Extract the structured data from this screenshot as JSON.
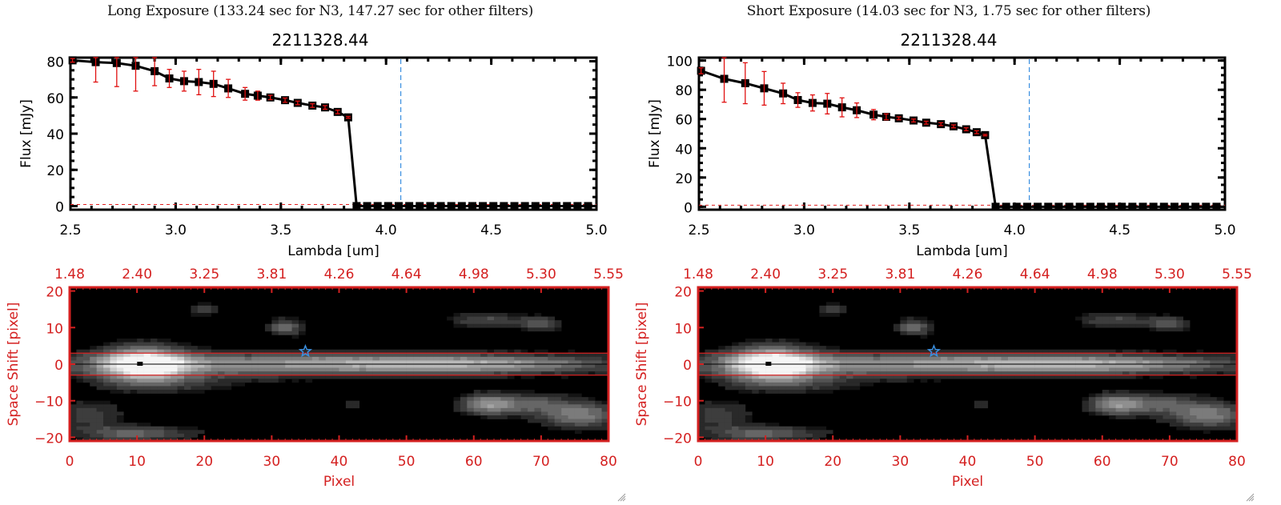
{
  "chart_data": [
    {
      "type": "line",
      "panel": "long",
      "title": "Long Exposure (133.24 sec for N3, 147.27 sec for other filters)",
      "subtitle": "2211328.44",
      "xlabel": "Lambda [um]",
      "ylabel": "Flux [mJy]",
      "xlim": [
        2.5,
        5.0
      ],
      "ylim": [
        -2,
        82
      ],
      "xticks": [
        "2.5",
        "3.0",
        "3.5",
        "4.0",
        "4.5",
        "5.0"
      ],
      "yticks": [
        "0",
        "20",
        "40",
        "60",
        "80"
      ],
      "ytick_values": [
        0,
        20,
        40,
        60,
        80
      ],
      "xtick_values": [
        2.5,
        3.0,
        3.5,
        4.0,
        4.5,
        5.0
      ],
      "marker_line": {
        "x": 4.07,
        "color": "#3a8fe0",
        "style": "dashed"
      },
      "zero_line": {
        "y": 0,
        "color": "#e02020",
        "style": "dashed"
      },
      "series": [
        {
          "name": "flux",
          "color": "#000000",
          "error_color": "#e01010",
          "x": [
            2.51,
            2.62,
            2.72,
            2.81,
            2.9,
            2.97,
            3.04,
            3.11,
            3.18,
            3.25,
            3.33,
            3.39,
            3.45,
            3.52,
            3.58,
            3.65,
            3.71,
            3.77,
            3.82,
            3.86,
            3.91,
            3.96,
            4.01,
            4.06,
            4.11,
            4.16,
            4.21,
            4.26,
            4.31,
            4.36,
            4.41,
            4.46,
            4.51,
            4.56,
            4.61,
            4.66,
            4.71,
            4.76,
            4.81,
            4.86,
            4.91,
            4.96
          ],
          "y": [
            80.5,
            79.5,
            79,
            77.5,
            74.5,
            70.5,
            69,
            68.5,
            67.5,
            65,
            62,
            61,
            60,
            58.5,
            57,
            55.5,
            54.5,
            52,
            49,
            0,
            0,
            0,
            0,
            0,
            0,
            0,
            0,
            0,
            0,
            0,
            0,
            0,
            0,
            0,
            0,
            0,
            0,
            0,
            0,
            0,
            0,
            0
          ],
          "err": [
            1,
            11,
            13,
            14,
            8,
            5,
            5.5,
            7,
            7,
            5,
            3.5,
            2.5,
            1.2,
            1.2,
            1,
            1,
            1,
            1,
            0.5,
            0,
            0,
            0,
            0,
            0,
            0,
            0,
            0,
            0,
            0,
            0,
            0,
            0,
            0,
            0,
            0,
            0,
            0,
            0,
            0,
            0,
            0,
            0
          ]
        }
      ]
    },
    {
      "type": "line",
      "panel": "short",
      "title": "Short Exposure (14.03 sec for N3, 1.75 sec for other filters)",
      "subtitle": "2211328.44",
      "xlabel": "Lambda [um]",
      "ylabel": "Flux [mJy]",
      "xlim": [
        2.5,
        5.0
      ],
      "ylim": [
        -2,
        102
      ],
      "xticks": [
        "2.5",
        "3.0",
        "3.5",
        "4.0",
        "4.5",
        "5.0"
      ],
      "yticks": [
        "0",
        "20",
        "40",
        "60",
        "80",
        "100"
      ],
      "ytick_values": [
        0,
        20,
        40,
        60,
        80,
        100
      ],
      "xtick_values": [
        2.5,
        3.0,
        3.5,
        4.0,
        4.5,
        5.0
      ],
      "marker_line": {
        "x": 4.07,
        "color": "#3a8fe0",
        "style": "dashed"
      },
      "zero_line": {
        "y": 0,
        "color": "#e02020",
        "style": "dashed"
      },
      "series": [
        {
          "name": "flux",
          "color": "#000000",
          "error_color": "#e01010",
          "x": [
            2.51,
            2.62,
            2.72,
            2.81,
            2.9,
            2.97,
            3.04,
            3.11,
            3.18,
            3.25,
            3.33,
            3.39,
            3.45,
            3.52,
            3.58,
            3.65,
            3.71,
            3.77,
            3.82,
            3.86,
            3.91,
            3.96,
            4.01,
            4.06,
            4.11,
            4.16,
            4.21,
            4.26,
            4.31,
            4.36,
            4.41,
            4.46,
            4.51,
            4.56,
            4.61,
            4.66,
            4.71,
            4.76,
            4.81,
            4.86,
            4.91,
            4.96
          ],
          "y": [
            93,
            87.5,
            84.5,
            81,
            77.5,
            73,
            71,
            70.5,
            68,
            66,
            63,
            61.5,
            60.5,
            59,
            57.5,
            56.5,
            55,
            53,
            51,
            49,
            0,
            0,
            0,
            0,
            0,
            0,
            0,
            0,
            0,
            0,
            0,
            0,
            0,
            0,
            0,
            0,
            0,
            0,
            0,
            0,
            0,
            0
          ],
          "err": [
            2,
            16,
            14,
            11.5,
            7,
            5,
            5.5,
            7,
            6.5,
            5,
            3.5,
            2,
            1,
            1,
            1,
            1,
            1,
            1,
            1,
            0.5,
            0,
            0,
            0,
            0,
            0,
            0,
            0,
            0,
            0,
            0,
            0,
            0,
            0,
            0,
            0,
            0,
            0,
            0,
            0,
            0,
            0,
            0
          ]
        }
      ]
    },
    {
      "type": "heatmap",
      "panel": "long-image",
      "xlabel": "Pixel",
      "ylabel": "Space Shift [pixel]",
      "xlim": [
        0,
        80
      ],
      "ylim": [
        -21,
        21
      ],
      "xticks": [
        "0",
        "10",
        "20",
        "30",
        "40",
        "50",
        "60",
        "70",
        "80"
      ],
      "yticks": [
        "-20",
        "-10",
        "0",
        "10",
        "20"
      ],
      "top_axis_ticks": [
        "1.48",
        "2.40",
        "3.25",
        "3.81",
        "4.26",
        "4.64",
        "4.98",
        "5.30",
        "5.55"
      ],
      "aperture_lines": [
        3,
        -3
      ],
      "center_line": 0,
      "star_marker": {
        "x": 35,
        "y": 3.5,
        "color": "#3a8fe0"
      },
      "peak_marker": {
        "x": 10.5,
        "y": 0
      },
      "axis_color": "#d42020"
    },
    {
      "type": "heatmap",
      "panel": "short-image",
      "xlabel": "Pixel",
      "ylabel": "Space Shift [pixel]",
      "xlim": [
        0,
        80
      ],
      "ylim": [
        -21,
        21
      ],
      "xticks": [
        "0",
        "10",
        "20",
        "30",
        "40",
        "50",
        "60",
        "70",
        "80"
      ],
      "yticks": [
        "-20",
        "-10",
        "0",
        "10",
        "20"
      ],
      "top_axis_ticks": [
        "1.48",
        "2.40",
        "3.25",
        "3.81",
        "4.26",
        "4.64",
        "4.98",
        "5.30",
        "5.55"
      ],
      "aperture_lines": [
        3,
        -3
      ],
      "center_line": 0,
      "star_marker": {
        "x": 35,
        "y": 3.5,
        "color": "#3a8fe0"
      },
      "peak_marker": {
        "x": 10.5,
        "y": 0
      },
      "axis_color": "#d42020"
    }
  ],
  "panels": [
    {
      "title": "Long Exposure (133.24 sec for N3, 147.27 sec for other filters)",
      "object_id": "2211328.44"
    },
    {
      "title": "Short Exposure (14.03 sec for N3, 1.75 sec for other filters)",
      "object_id": "2211328.44"
    }
  ]
}
